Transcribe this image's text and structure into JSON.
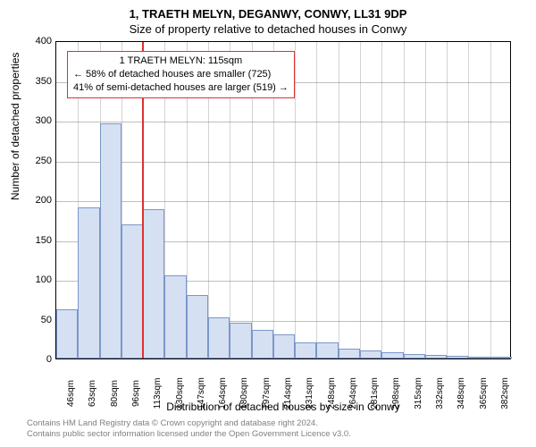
{
  "titles": {
    "main": "1, TRAETH MELYN, DEGANWY, CONWY, LL31 9DP",
    "sub": "Size of property relative to detached houses in Conwy"
  },
  "chart": {
    "type": "histogram",
    "ylabel": "Number of detached properties",
    "xlabel": "Distribution of detached houses by size in Conwy",
    "ylim": [
      0,
      400
    ],
    "ytick_step": 50,
    "categories": [
      "46sqm",
      "63sqm",
      "80sqm",
      "96sqm",
      "113sqm",
      "130sqm",
      "147sqm",
      "164sqm",
      "180sqm",
      "197sqm",
      "214sqm",
      "231sqm",
      "248sqm",
      "264sqm",
      "281sqm",
      "298sqm",
      "315sqm",
      "332sqm",
      "348sqm",
      "365sqm",
      "382sqm"
    ],
    "values": [
      62,
      190,
      295,
      168,
      188,
      105,
      80,
      52,
      45,
      36,
      30,
      20,
      20,
      12,
      10,
      8,
      6,
      5,
      3,
      2,
      2
    ],
    "bar_fill": "#d5e0f2",
    "bar_stroke": "#7b97c9",
    "background_color": "#ffffff",
    "grid_color": "#808080",
    "axis_color": "#000000",
    "marker": {
      "index": 4,
      "color": "#e03030"
    },
    "info_box": {
      "line1": "1 TRAETH MELYN: 115sqm",
      "line2": "← 58% of detached houses are smaller (725)",
      "line3": "41% of semi-detached houses are larger (519) →",
      "border_color": "#e03030"
    },
    "title_fontsize": 13,
    "label_fontsize": 12,
    "tick_fontsize": 11
  },
  "footer": {
    "line1": "Contains HM Land Registry data © Crown copyright and database right 2024.",
    "line2": "Contains public sector information licensed under the Open Government Licence v3.0."
  }
}
